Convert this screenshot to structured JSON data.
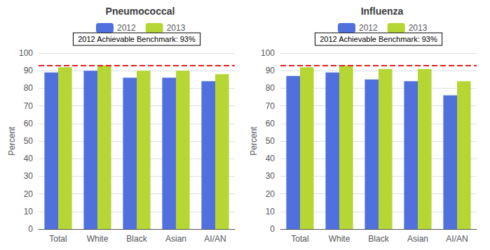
{
  "chart_data": [
    {
      "type": "bar",
      "title": "Pneumococcal",
      "categories": [
        "Total",
        "White",
        "Black",
        "Asian",
        "AI/AN"
      ],
      "series": [
        {
          "name": "2012",
          "values": [
            89,
            90,
            86,
            86,
            84
          ]
        },
        {
          "name": "2013",
          "values": [
            92,
            93,
            90,
            90,
            88
          ]
        }
      ],
      "ylabel": "Percent",
      "ylim": [
        0,
        100
      ],
      "yticks": [
        0,
        10,
        20,
        30,
        40,
        50,
        60,
        70,
        80,
        90,
        100
      ],
      "grid": true,
      "legend": "top",
      "benchmark": {
        "value": 93,
        "label": "2012 Achievable Benchmark: 93%",
        "color": "#E02020"
      }
    },
    {
      "type": "bar",
      "title": "Influenza",
      "categories": [
        "Total",
        "White",
        "Black",
        "Asian",
        "AI/AN"
      ],
      "series": [
        {
          "name": "2012",
          "values": [
            87,
            89,
            85,
            84,
            76
          ]
        },
        {
          "name": "2013",
          "values": [
            92,
            93,
            91,
            91,
            84
          ]
        }
      ],
      "ylabel": "Percent",
      "ylim": [
        0,
        100
      ],
      "yticks": [
        0,
        10,
        20,
        30,
        40,
        50,
        60,
        70,
        80,
        90,
        100
      ],
      "grid": true,
      "legend": "top",
      "benchmark": {
        "value": 93,
        "label": "2012 Achievable Benchmark: 93%",
        "color": "#E02020"
      }
    }
  ]
}
